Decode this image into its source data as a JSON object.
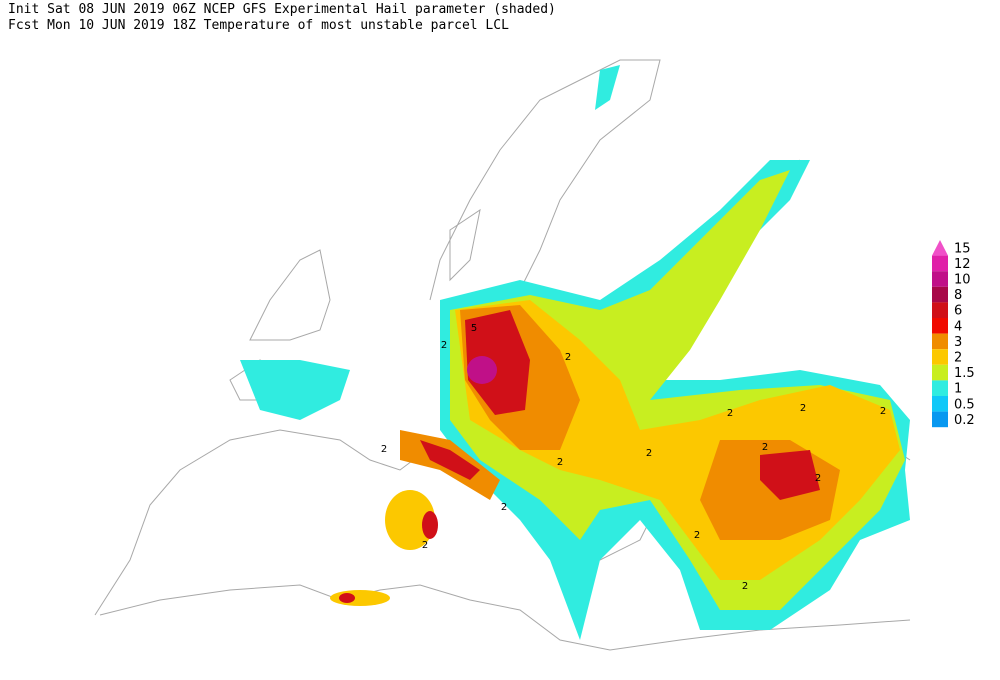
{
  "header": {
    "line1": "Init  Sat 08 JUN 2019 06Z  NCEP GFS Experimental Hail parameter (shaded)",
    "line2": "Fcst Mon 10 JUN 2019 18Z  Temperature of most unstable parcel LCL"
  },
  "legend": {
    "items": [
      {
        "label": "15",
        "color": "#f050c8"
      },
      {
        "label": "12",
        "color": "#e020a8"
      },
      {
        "label": "10",
        "color": "#c01088"
      },
      {
        "label": "8",
        "color": "#a80848"
      },
      {
        "label": "6",
        "color": "#d01018"
      },
      {
        "label": "4",
        "color": "#f00a00"
      },
      {
        "label": "3",
        "color": "#f08c00"
      },
      {
        "label": "2",
        "color": "#fcc800"
      },
      {
        "label": "1.5",
        "color": "#c8ee20"
      },
      {
        "label": "1",
        "color": "#30ece0"
      },
      {
        "label": "0.5",
        "color": "#10c8f8"
      },
      {
        "label": "0.2",
        "color": "#0898f0"
      }
    ]
  },
  "map": {
    "contour_labels": [
      "5",
      "2",
      "2",
      "2",
      "2",
      "2",
      "2",
      "2",
      "2",
      "2",
      "2",
      "2",
      "2",
      "2",
      "2"
    ]
  }
}
